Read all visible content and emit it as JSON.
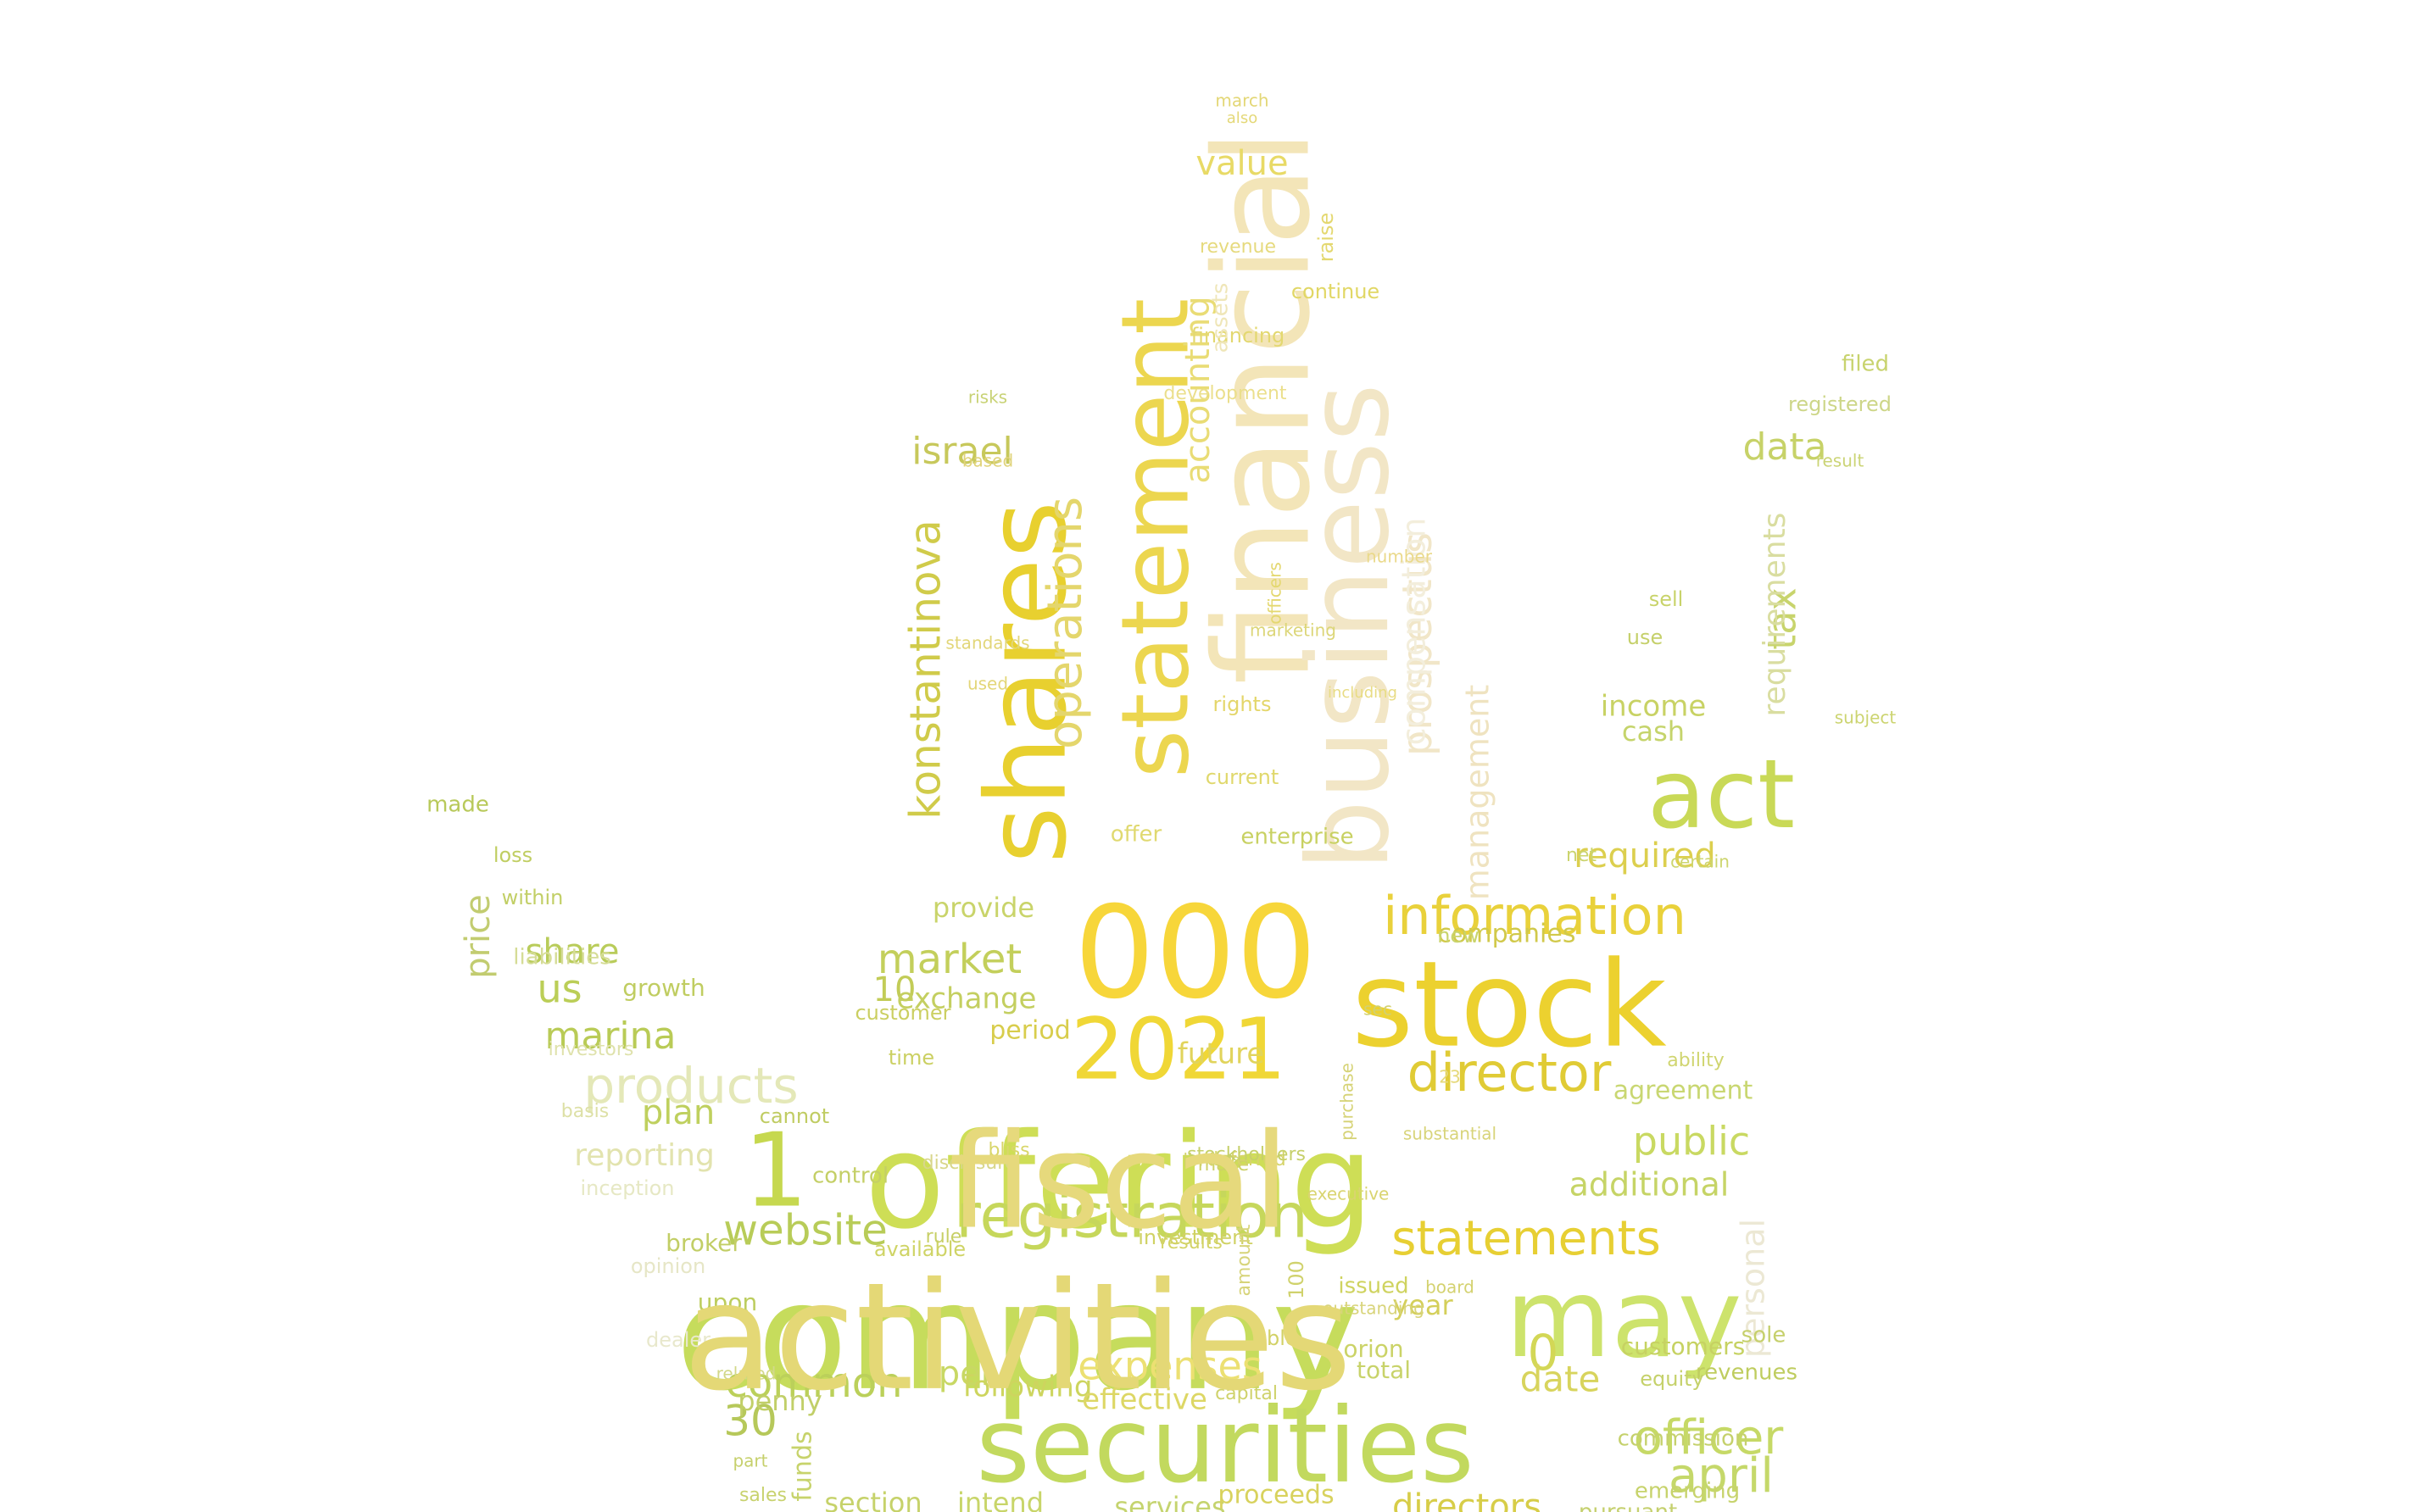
{
  "words": [
    {
      "text": "company",
      "color": "#c6dc5c"
    },
    {
      "text": "offering",
      "color": "#cede56"
    },
    {
      "text": "securities",
      "color": "#c2d95e"
    },
    {
      "text": "000",
      "color": "#f7d63a"
    },
    {
      "text": "stock",
      "color": "#ecd12f"
    },
    {
      "text": "may",
      "color": "#cde36c"
    },
    {
      "text": "2021",
      "color": "#f0d736"
    },
    {
      "text": "financial",
      "color": "#f3e5b8"
    },
    {
      "text": "business",
      "color": "#f2e6c6"
    },
    {
      "text": "shares",
      "color": "#e8d02f"
    },
    {
      "text": "statement",
      "color": "#ecd64f"
    },
    {
      "text": "act",
      "color": "#c9d957"
    },
    {
      "text": "registration",
      "color": "#c6d75b"
    },
    {
      "text": "1",
      "color": "#c6d84f"
    },
    {
      "text": "information",
      "color": "#e9d13b"
    },
    {
      "text": "director",
      "color": "#e0cb35"
    },
    {
      "text": "statements",
      "color": "#e7cf33"
    },
    {
      "text": "officer",
      "color": "#c6d966"
    },
    {
      "text": "website",
      "color": "#b8cc58"
    },
    {
      "text": "products",
      "color": "#e4e8b8"
    },
    {
      "text": "april",
      "color": "#c5d86a"
    },
    {
      "text": "market",
      "color": "#c3cf5b"
    },
    {
      "text": "common",
      "color": "#bbd05a"
    },
    {
      "text": "operations",
      "color": "#e4d66c"
    },
    {
      "text": "konstantinova",
      "color": "#d0cb4a"
    },
    {
      "text": "prospectus",
      "color": "#f1e6c8"
    },
    {
      "text": "public",
      "color": "#c9d962"
    },
    {
      "text": "expenses",
      "color": "#ece072"
    },
    {
      "text": "marina",
      "color": "#b9cb56"
    },
    {
      "text": "data",
      "color": "#c7d268"
    },
    {
      "text": "us",
      "color": "#bbce57"
    },
    {
      "text": "0",
      "color": "#d3d756"
    },
    {
      "text": "30",
      "color": "#b6c85a"
    },
    {
      "text": "value",
      "color": "#e8da66"
    },
    {
      "text": "israel",
      "color": "#c7c85b"
    },
    {
      "text": "tax",
      "color": "#c8d46c"
    },
    {
      "text": "price",
      "color": "#c2cc70"
    },
    {
      "text": "share",
      "color": "#b9cc5a"
    },
    {
      "text": "plan",
      "color": "#bfd05e"
    },
    {
      "text": "date",
      "color": "#d8d45d"
    },
    {
      "text": "accounting",
      "color": "#e9dc75"
    },
    {
      "text": "required",
      "color": "#dccf4e"
    },
    {
      "text": "10",
      "color": "#c2cc57"
    },
    {
      "text": "per",
      "color": "#c8d864"
    },
    {
      "text": "directors",
      "color": "#d7cd48"
    },
    {
      "text": "additional",
      "color": "#c6d466"
    },
    {
      "text": "reporting",
      "color": "#e2e3ae"
    },
    {
      "text": "management",
      "color": "#efe3c0"
    },
    {
      "text": "compensation",
      "color": "#f3eedc"
    },
    {
      "text": "personal",
      "color": "#ece8d4"
    },
    {
      "text": "requirements",
      "color": "#d9dda0"
    },
    {
      "text": "income",
      "color": "#c8d264"
    },
    {
      "text": "cash",
      "color": "#c5d46b"
    },
    {
      "text": "future",
      "color": "#e1d45c"
    },
    {
      "text": "services",
      "color": "#c5d46f"
    },
    {
      "text": "section",
      "color": "#c6d26a"
    },
    {
      "text": "intend",
      "color": "#c8d569"
    },
    {
      "text": "proceeds",
      "color": "#d8d25d"
    },
    {
      "text": "emerging",
      "color": "#c7d36c"
    },
    {
      "text": "pursuant",
      "color": "#c5d06e"
    },
    {
      "text": "following",
      "color": "#cdd55e"
    },
    {
      "text": "effective",
      "color": "#ddd765"
    },
    {
      "text": "penny",
      "color": "#c1cf68"
    },
    {
      "text": "funds",
      "color": "#c7d36b"
    },
    {
      "text": "exchange",
      "color": "#c4cf60"
    },
    {
      "text": "period",
      "color": "#d8cd4c"
    },
    {
      "text": "provide",
      "color": "#c9d46a"
    },
    {
      "text": "companies",
      "color": "#d1c94a"
    },
    {
      "text": "agreement",
      "color": "#c9d772"
    },
    {
      "text": "year",
      "color": "#d4cf5a"
    },
    {
      "text": "customers",
      "color": "#c6d262"
    },
    {
      "text": "orion",
      "color": "#cbd367"
    },
    {
      "text": "total",
      "color": "#c8d36a"
    },
    {
      "text": "equity",
      "color": "#c5d16a"
    },
    {
      "text": "revenues",
      "color": "#bfcd5f"
    },
    {
      "text": "sole",
      "color": "#c6d06c"
    },
    {
      "text": "commission",
      "color": "#c5d16c"
    },
    {
      "text": "issued",
      "color": "#cfd35f"
    },
    {
      "text": "upon",
      "color": "#bccd5e"
    },
    {
      "text": "broker",
      "color": "#c2ce66"
    },
    {
      "text": "control",
      "color": "#c4cf66"
    },
    {
      "text": "growth",
      "color": "#c0cd61"
    },
    {
      "text": "made",
      "color": "#b8c95a"
    },
    {
      "text": "loss",
      "color": "#c0ce62"
    },
    {
      "text": "within",
      "color": "#c2cf66"
    },
    {
      "text": "liabilities",
      "color": "#d5dc96"
    },
    {
      "text": "investors",
      "color": "#dfe2ac"
    },
    {
      "text": "basis",
      "color": "#dde0a6"
    },
    {
      "text": "inception",
      "color": "#e6e8c4"
    },
    {
      "text": "opinion",
      "color": "#e6e6c6"
    },
    {
      "text": "dealer",
      "color": "#e8e8cc"
    },
    {
      "text": "cannot",
      "color": "#c0cc62"
    },
    {
      "text": "time",
      "color": "#cbd062"
    },
    {
      "text": "customer",
      "color": "#cbcf61"
    },
    {
      "text": "available",
      "color": "#cfd466"
    },
    {
      "text": "investment",
      "color": "#d0d264"
    },
    {
      "text": "results",
      "color": "#d3d366"
    },
    {
      "text": "rule",
      "color": "#c7cf66"
    },
    {
      "text": "disclosure",
      "color": "#d8d68a"
    },
    {
      "text": "limited",
      "color": "#d2d16a"
    },
    {
      "text": "make",
      "color": "#cdd068"
    },
    {
      "text": "deferred",
      "color": "#d6d46a"
    },
    {
      "text": "stockholders",
      "color": "#c6d06a"
    },
    {
      "text": "bliss",
      "color": "#d8d66a"
    },
    {
      "text": "enterprise",
      "color": "#c8d162"
    },
    {
      "text": "offer",
      "color": "#e0d970"
    },
    {
      "text": "current",
      "color": "#e0d86c"
    },
    {
      "text": "rights",
      "color": "#e4d66a"
    },
    {
      "text": "financing",
      "color": "#e3d870"
    },
    {
      "text": "development",
      "color": "#ebdf8c"
    },
    {
      "text": "assets",
      "color": "#efe6b8"
    },
    {
      "text": "raise",
      "color": "#e4d870"
    },
    {
      "text": "continue",
      "color": "#e1d765"
    },
    {
      "text": "new",
      "color": "#c9d46c"
    },
    {
      "text": "sell",
      "color": "#c8d36a"
    },
    {
      "text": "use",
      "color": "#c5d06a"
    },
    {
      "text": "filed",
      "color": "#c8d36e"
    },
    {
      "text": "registered",
      "color": "#cdd688"
    },
    {
      "text": "result",
      "color": "#cbd476"
    },
    {
      "text": "subject",
      "color": "#ccd470"
    },
    {
      "text": "certain",
      "color": "#cdd56e"
    },
    {
      "text": "ability",
      "color": "#d0d570"
    },
    {
      "text": "net",
      "color": "#cbd46e"
    },
    {
      "text": "amount",
      "color": "#d7d47a"
    },
    {
      "text": "100",
      "color": "#d0d26c"
    },
    {
      "text": "able",
      "color": "#d2d166"
    },
    {
      "text": "capital",
      "color": "#cfd26a"
    },
    {
      "text": "sales",
      "color": "#c8d26e"
    },
    {
      "text": "part",
      "color": "#c6d06c"
    },
    {
      "text": "related",
      "color": "#d2d88a"
    },
    {
      "text": "risks",
      "color": "#c8d274"
    },
    {
      "text": "based",
      "color": "#e0d37a"
    },
    {
      "text": "standards",
      "color": "#e2d678"
    },
    {
      "text": "used",
      "color": "#e3d678"
    },
    {
      "text": "march",
      "color": "#e3d776"
    },
    {
      "text": "also",
      "color": "#e4d878"
    },
    {
      "text": "revenue",
      "color": "#e6da7e"
    },
    {
      "text": "23",
      "color": "#e6d97a"
    },
    {
      "text": "substantial",
      "color": "#d8d47a"
    },
    {
      "text": "purchase",
      "color": "#d6d376"
    },
    {
      "text": "outstanding",
      "color": "#d8d47a"
    },
    {
      "text": "board",
      "color": "#d4d270"
    },
    {
      "text": "executive",
      "color": "#d9d470"
    },
    {
      "text": "sec",
      "color": "#d2d170"
    },
    {
      "text": "marketing",
      "color": "#dcd678"
    },
    {
      "text": "officers",
      "color": "#e4d870"
    },
    {
      "text": "including",
      "color": "#e8dc84"
    },
    {
      "text": "number",
      "color": "#ead98a"
    },
    {
      "text": "activities",
      "color": "#e4d876"
    },
    {
      "text": "fiscal",
      "color": "#e6d97c"
    }
  ]
}
